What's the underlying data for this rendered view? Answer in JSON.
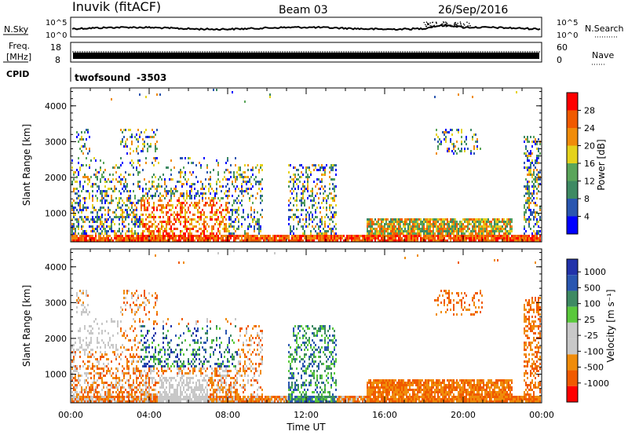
{
  "header": {
    "station": "Inuvik (fitACF)",
    "beam": "Beam 03",
    "date": "26/Sep/2016"
  },
  "noise_panel": {
    "label_left": "N.Sky",
    "left_ticks": [
      "10^5",
      "10^0"
    ],
    "right_ticks": [
      "10^5",
      "10^0"
    ],
    "label_right": "N.Search"
  },
  "freq_panel": {
    "label_top": "Freq.",
    "label_bottom": "[MHz]",
    "left_ticks": [
      "18",
      "8"
    ],
    "right_ticks": [
      "60",
      "0"
    ],
    "label_right": "Nave"
  },
  "cpid": {
    "label": "CPID",
    "program": "twofsound",
    "id": "-3503"
  },
  "colors": {
    "power_scale": [
      "#0000ff",
      "#2a56b0",
      "#3e8a63",
      "#5aa55a",
      "#e5d21c",
      "#f08c0a",
      "#f05a00",
      "#ff0000"
    ],
    "velocity_scale": [
      "#ff0000",
      "#f05a00",
      "#f08c0a",
      "#c8c8c8",
      "#c8c8c8",
      "#5ac83c",
      "#3e8a63",
      "#2a56b0",
      "#2233aa"
    ]
  },
  "chart_data": [
    {
      "type": "heatmap",
      "title": "",
      "xlabel": "",
      "ylabel": "Slant Range [km]",
      "xlim": [
        "00:00",
        "24:00"
      ],
      "ylim": [
        200,
        4500
      ],
      "x_ticks": [
        "00:00",
        "04:00",
        "08:00",
        "12:00",
        "16:00",
        "20:00",
        "00:00"
      ],
      "y_ticks": [
        1000,
        2000,
        3000,
        4000
      ],
      "colorbar": {
        "label": "Power [dB]",
        "ticks": [
          4,
          8,
          12,
          16,
          20,
          24,
          28
        ]
      }
    },
    {
      "type": "heatmap",
      "title": "",
      "xlabel": "Time UT",
      "ylabel": "Slant Range [km]",
      "xlim": [
        "00:00",
        "24:00"
      ],
      "ylim": [
        200,
        4500
      ],
      "x_ticks": [
        "00:00",
        "04:00",
        "08:00",
        "12:00",
        "16:00",
        "20:00",
        "00:00"
      ],
      "y_ticks": [
        1000,
        2000,
        3000,
        4000
      ],
      "colorbar": {
        "label": "Velocity [m s⁻¹]",
        "ticks": [
          1000,
          500,
          100,
          25,
          -25,
          -100,
          -500,
          -1000
        ]
      }
    }
  ]
}
